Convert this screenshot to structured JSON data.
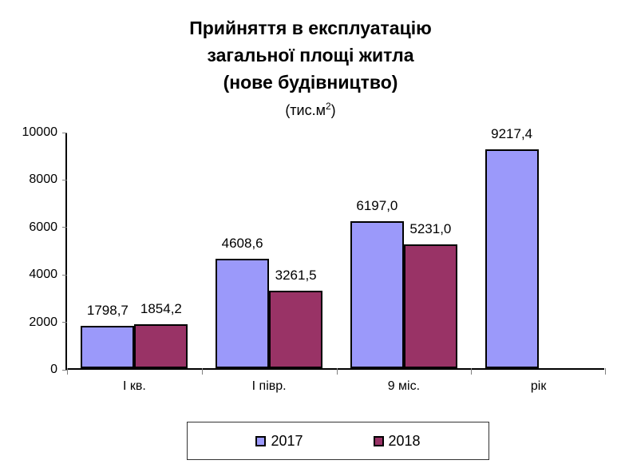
{
  "title": {
    "line1": "Прийняття в експлуатацію",
    "line2": "загальної площі житла",
    "line3": "(нове будівництво)",
    "unit_prefix": "(тис.м",
    "unit_sup": "2",
    "unit_suffix": ")"
  },
  "chart_data": {
    "type": "bar",
    "title": "Прийняття в експлуатацію загальної площі житла (нове будівництво)",
    "unit": "тис.м2",
    "categories": [
      "І кв.",
      "І півр.",
      "9 міс.",
      "рік"
    ],
    "series": [
      {
        "name": "2017",
        "color": "#9b99fa",
        "values": [
          1798.7,
          4608.6,
          6197.0,
          9217.4
        ],
        "labels": [
          "1798,7",
          "4608,6",
          "6197,0",
          "9217,4"
        ]
      },
      {
        "name": "2018",
        "color": "#993366",
        "values": [
          1854.2,
          3261.5,
          5231.0,
          null
        ],
        "labels": [
          "1854,2",
          "3261,5",
          "5231,0",
          null
        ]
      }
    ],
    "ylim": [
      0,
      10000
    ],
    "yticks": [
      0,
      2000,
      4000,
      6000,
      8000,
      10000
    ],
    "ytick_labels": [
      "0",
      "2000",
      "4000",
      "6000",
      "8000",
      "10000"
    ],
    "grid": false,
    "legend_position": "bottom",
    "bar_border_color": "#000000",
    "axis_color": "#000000"
  },
  "legend": {
    "items": [
      {
        "label": "2017",
        "color": "#9b99fa"
      },
      {
        "label": "2018",
        "color": "#993366"
      }
    ]
  }
}
